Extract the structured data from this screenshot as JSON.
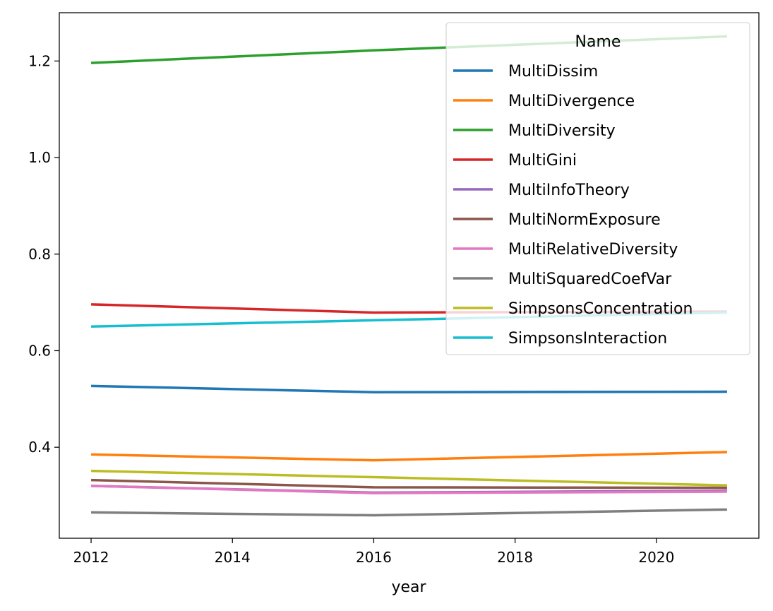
{
  "chart_data": {
    "type": "line",
    "title": "",
    "xlabel": "year",
    "ylabel": "",
    "xlim": [
      2011.55,
      2021.45
    ],
    "ylim": [
      0.2115,
      1.3
    ],
    "x_ticks": [
      2012,
      2014,
      2016,
      2018,
      2020
    ],
    "x_tick_labels": [
      "2012",
      "2014",
      "2016",
      "2018",
      "2020"
    ],
    "y_ticks": [
      0.4,
      0.6,
      0.8,
      1.0,
      1.2
    ],
    "y_tick_labels": [
      "0.4",
      "0.6",
      "0.8",
      "1.0",
      "1.2"
    ],
    "grid": false,
    "legend": {
      "title": "Name",
      "placement": "top-right"
    },
    "x": [
      2012,
      2016,
      2021
    ],
    "series": [
      {
        "name": "MultiDissim",
        "color": "#1f77b4",
        "values": [
          0.527,
          0.514,
          0.515
        ]
      },
      {
        "name": "MultiDivergence",
        "color": "#ff7f0e",
        "values": [
          0.385,
          0.373,
          0.39
        ]
      },
      {
        "name": "MultiDiversity",
        "color": "#2ca02c",
        "values": [
          1.196,
          1.222,
          1.251
        ]
      },
      {
        "name": "MultiGini",
        "color": "#d62728",
        "values": [
          0.696,
          0.679,
          0.681
        ]
      },
      {
        "name": "MultiInfoTheory",
        "color": "#9467bd",
        "values": [
          0.32,
          0.306,
          0.31
        ]
      },
      {
        "name": "MultiNormExposure",
        "color": "#8c564b",
        "values": [
          0.332,
          0.317,
          0.316
        ]
      },
      {
        "name": "MultiRelativeDiversity",
        "color": "#e377c2",
        "values": [
          0.32,
          0.305,
          0.308
        ]
      },
      {
        "name": "MultiSquaredCoefVar",
        "color": "#7f7f7f",
        "values": [
          0.265,
          0.259,
          0.271
        ]
      },
      {
        "name": "SimpsonsConcentration",
        "color": "#bcbd22",
        "values": [
          0.351,
          0.338,
          0.321
        ]
      },
      {
        "name": "SimpsonsInteraction",
        "color": "#17becf",
        "values": [
          0.65,
          0.663,
          0.679
        ]
      }
    ]
  }
}
